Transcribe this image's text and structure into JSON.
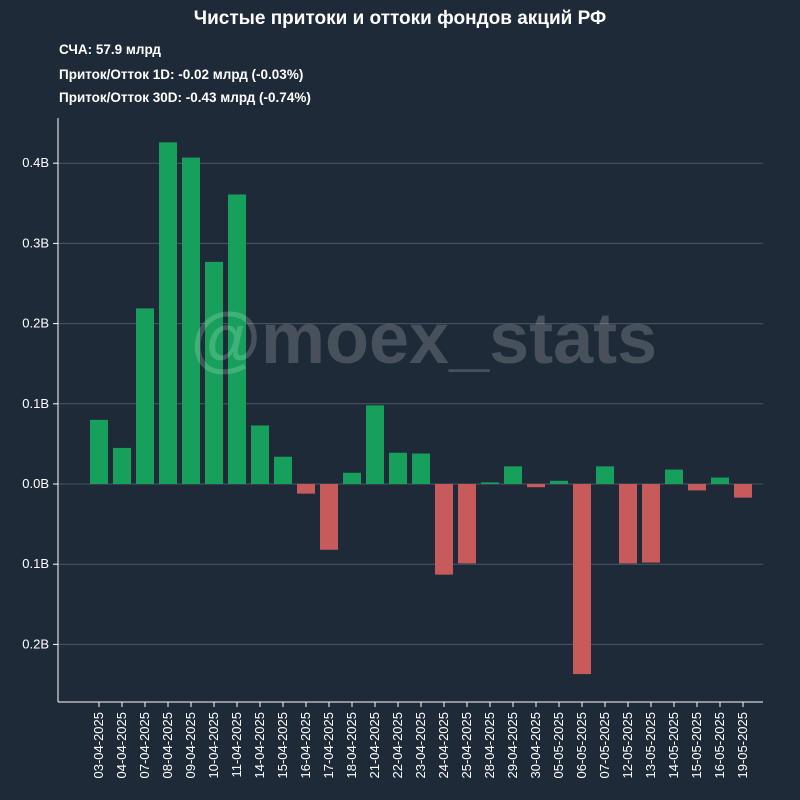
{
  "chart_data": {
    "type": "bar",
    "title": "Чистые притоки и оттоки фондов акций РФ",
    "stats": [
      "СЧА: 57.9 млрд",
      "Приток/Отток 1D: -0.02 млрд (-0.03%)",
      "Приток/Отток 30D: -0.43 млрд (-0.74%)"
    ],
    "watermark": "@moex_stats",
    "xlabel": "",
    "ylabel": "",
    "ylim": [
      -0.27,
      0.46
    ],
    "yticks": [
      {
        "value": 0.4,
        "label": "0.4B"
      },
      {
        "value": 0.3,
        "label": "0.3B"
      },
      {
        "value": 0.2,
        "label": "0.2B"
      },
      {
        "value": 0.1,
        "label": "0.1B"
      },
      {
        "value": 0.0,
        "label": "0.0B"
      },
      {
        "value": -0.1,
        "label": "0.1B"
      },
      {
        "value": -0.2,
        "label": "0.2B"
      }
    ],
    "grid": true,
    "categories": [
      "03-04-2025",
      "04-04-2025",
      "07-04-2025",
      "08-04-2025",
      "09-04-2025",
      "10-04-2025",
      "11-04-2025",
      "14-04-2025",
      "15-04-2025",
      "16-04-2025",
      "17-04-2025",
      "18-04-2025",
      "21-04-2025",
      "22-04-2025",
      "23-04-2025",
      "24-04-2025",
      "25-04-2025",
      "28-04-2025",
      "29-04-2025",
      "30-04-2025",
      "05-05-2025",
      "06-05-2025",
      "07-05-2025",
      "12-05-2025",
      "13-05-2025",
      "14-05-2025",
      "15-05-2025",
      "16-05-2025",
      "19-05-2025"
    ],
    "values": [
      0.08,
      0.045,
      0.219,
      0.426,
      0.407,
      0.277,
      0.361,
      0.073,
      0.034,
      -0.012,
      -0.082,
      0.014,
      0.098,
      0.039,
      0.038,
      -0.113,
      -0.099,
      0.002,
      0.022,
      -0.004,
      0.004,
      -0.237,
      0.022,
      -0.099,
      -0.098,
      0.018,
      -0.008,
      0.008,
      -0.017
    ],
    "colors": {
      "positive": "#17a05c",
      "negative": "#c75b5b",
      "background": "#1f2a38",
      "grid": "#4b5766",
      "axis": "#ffffff",
      "watermark": "#ffffff"
    }
  }
}
